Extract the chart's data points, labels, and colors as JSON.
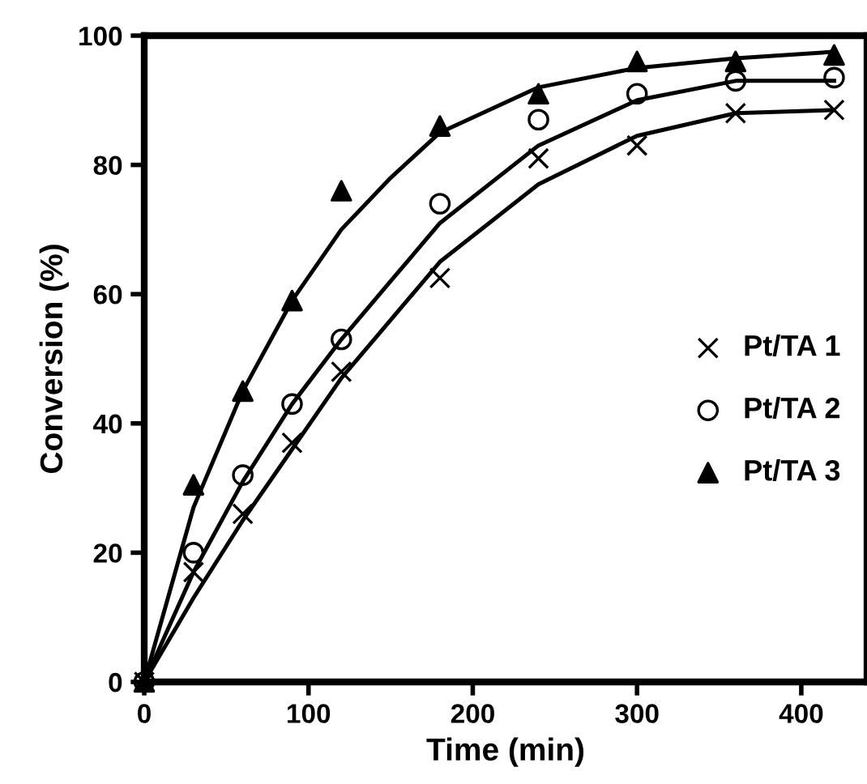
{
  "chart_data": {
    "type": "scatter",
    "xlabel": "Time (min)",
    "ylabel": "Conversion (%)",
    "xlim": [
      0,
      440
    ],
    "ylim": [
      0,
      100
    ],
    "xticks": [
      0,
      100,
      200,
      300,
      400
    ],
    "yticks": [
      0,
      20,
      40,
      60,
      80,
      100
    ],
    "grid": false,
    "legend": "right",
    "series": [
      {
        "name": "Pt/TA 1",
        "color": "#000000",
        "marker": "cross",
        "x": [
          0,
          30,
          60,
          90,
          120,
          180,
          240,
          300,
          360,
          420
        ],
        "values": [
          0,
          17,
          26,
          37,
          48,
          62.5,
          81,
          83,
          88,
          88.5
        ]
      },
      {
        "name": "Pt/TA 2",
        "color": "#000000",
        "marker": "circle",
        "x": [
          0,
          30,
          60,
          90,
          120,
          180,
          240,
          300,
          360,
          420
        ],
        "values": [
          0,
          20,
          32,
          43,
          53,
          74,
          87,
          91,
          93,
          93.5
        ]
      },
      {
        "name": "Pt/TA 3",
        "color": "#000000",
        "marker": "triangle",
        "x": [
          0,
          30,
          60,
          90,
          120,
          180,
          240,
          300,
          360,
          420
        ],
        "values": [
          0,
          30.5,
          45,
          59,
          76,
          86,
          91,
          96,
          96,
          97
        ]
      },
      {
        "type": "line",
        "color": "#000000",
        "line_style": "solid",
        "x": [
          0,
          30,
          60,
          90,
          120,
          150,
          180,
          240,
          300,
          360,
          420
        ],
        "values": [
          0,
          13,
          25,
          36,
          47,
          56,
          65,
          77,
          84.5,
          88,
          88.5
        ]
      },
      {
        "type": "line",
        "color": "#000000",
        "line_style": "solid",
        "x": [
          0,
          30,
          60,
          90,
          120,
          150,
          180,
          240,
          300,
          360,
          420
        ],
        "values": [
          0,
          17,
          31,
          43,
          53,
          62,
          71,
          83,
          90,
          93,
          93
        ]
      },
      {
        "type": "line",
        "color": "#000000",
        "line_style": "solid",
        "x": [
          0,
          30,
          60,
          90,
          120,
          150,
          180,
          240,
          300,
          360,
          420
        ],
        "values": [
          0,
          27,
          45,
          59,
          70,
          78,
          85,
          92,
          95,
          96.5,
          97.5
        ]
      }
    ]
  }
}
